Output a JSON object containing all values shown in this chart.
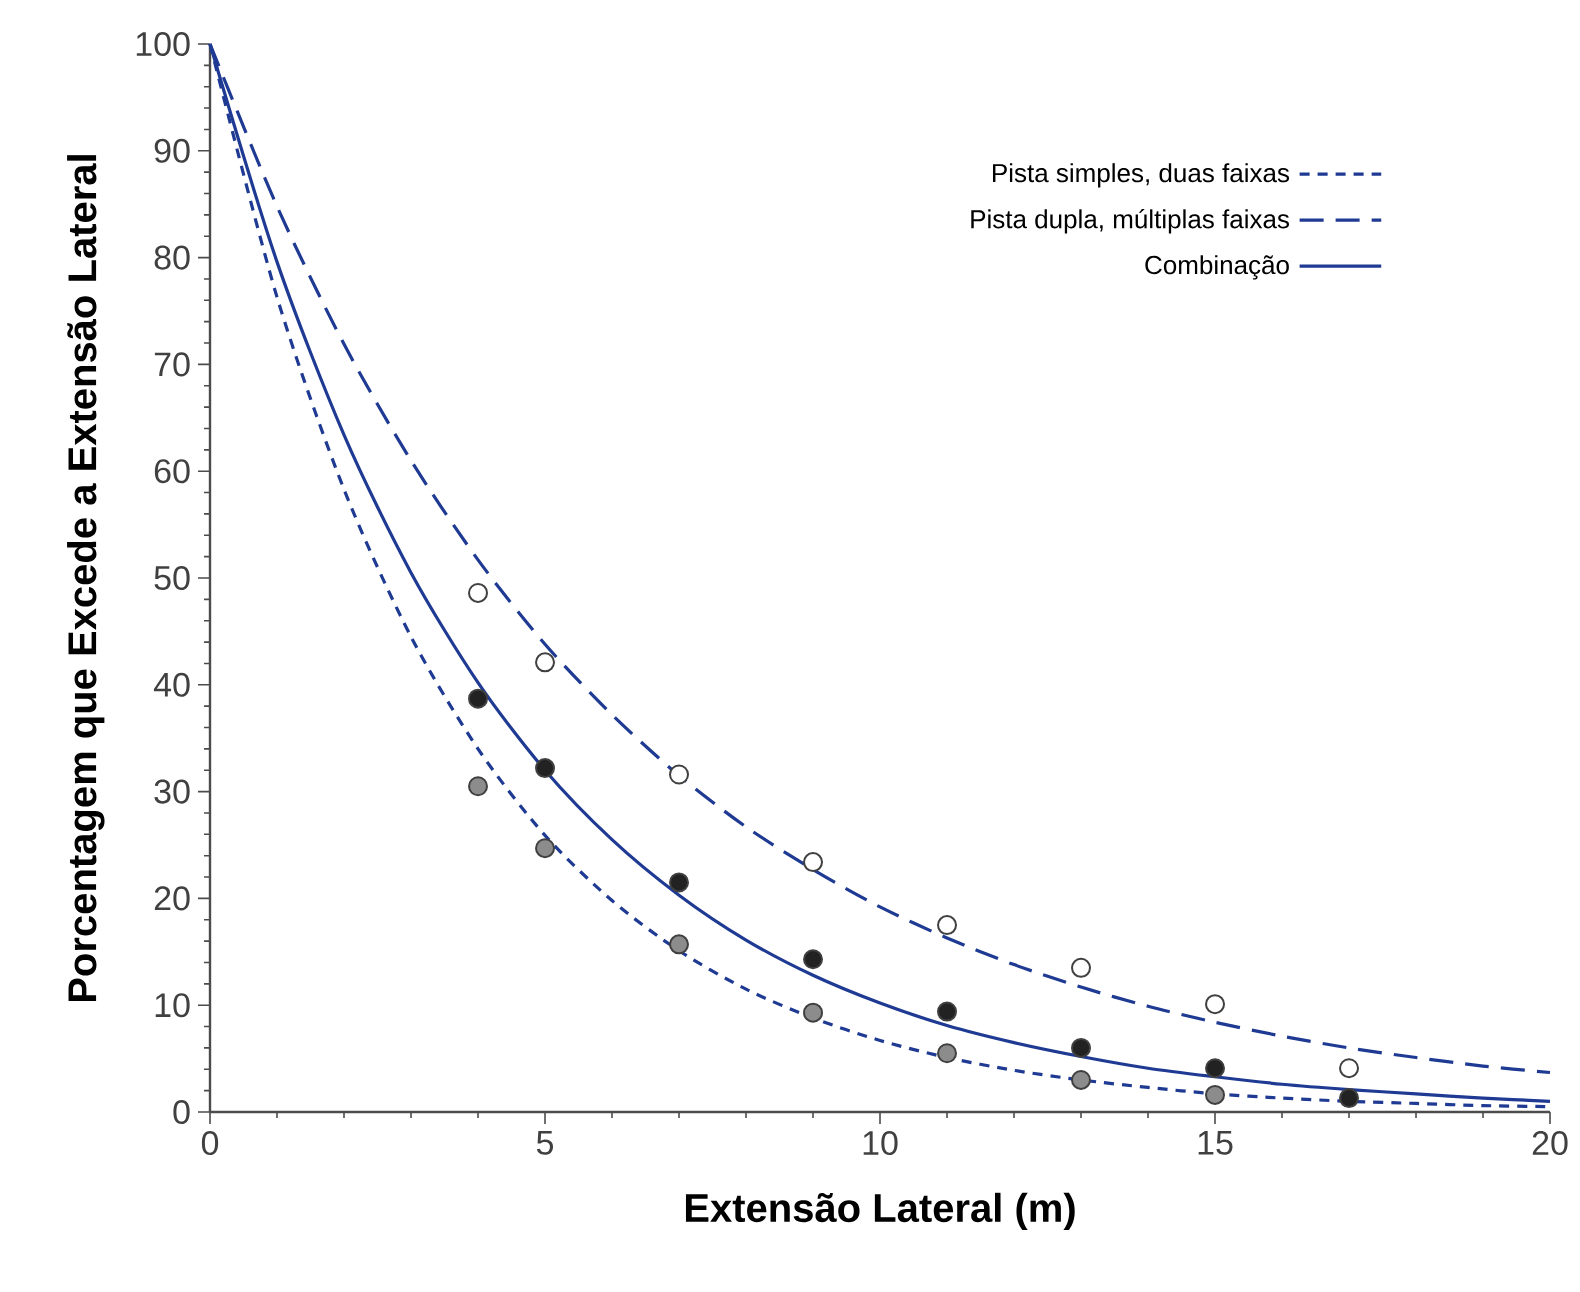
{
  "chart_data": {
    "type": "line",
    "xlabel": "Extensão Lateral (m)",
    "ylabel": "Porcentagem que Excede a Extensão Lateral",
    "xlim": [
      0,
      20
    ],
    "ylim": [
      0,
      100
    ],
    "xticks": [
      0,
      5,
      10,
      15,
      20
    ],
    "yticks": [
      0,
      10,
      20,
      30,
      40,
      50,
      60,
      70,
      80,
      90,
      100
    ],
    "grid": false,
    "legend": "top right",
    "marker": "none",
    "series": [
      {
        "name": "Pista simples, duas faixas",
        "color": "#1f3a93",
        "line_style": "dashed",
        "x": [
          0,
          1,
          2,
          3,
          4,
          5,
          6,
          7,
          8,
          9,
          10,
          11,
          12,
          13,
          14,
          15,
          16,
          17,
          18,
          19,
          20
        ],
        "values": [
          100,
          76.3,
          58.3,
          44.5,
          34.0,
          25.9,
          19.8,
          15.1,
          11.5,
          8.8,
          6.7,
          5.1,
          3.9,
          3.0,
          2.3,
          1.7,
          1.3,
          1.0,
          0.8,
          0.6,
          0.5
        ]
      },
      {
        "name": "Pista dupla, múltiplas faixas",
        "color": "#1f3a93",
        "line_style": "dashed",
        "x": [
          0,
          1,
          2,
          3,
          4,
          5,
          6,
          7,
          8,
          9,
          10,
          11,
          12,
          13,
          14,
          15,
          16,
          17,
          18,
          19,
          20
        ],
        "values": [
          100,
          84.8,
          71.9,
          61,
          51.7,
          43.8,
          37.2,
          31.5,
          26.7,
          22.7,
          19.2,
          16.3,
          13.8,
          11.7,
          9.9,
          8.4,
          7.1,
          6.0,
          5.1,
          4.3,
          3.7
        ]
      },
      {
        "name": "Combinação",
        "color": "#1f3a93",
        "line_style": "solid",
        "x": [
          0,
          1,
          2,
          3,
          4,
          5,
          6,
          7,
          8,
          9,
          10,
          11,
          12,
          13,
          14,
          15,
          16,
          17,
          18,
          19,
          20
        ],
        "values": [
          100,
          79.6,
          63.4,
          50.5,
          40.2,
          32,
          25.5,
          20.3,
          16.1,
          12.8,
          10.2,
          8.1,
          6.5,
          5.2,
          4.1,
          3.3,
          2.6,
          2.1,
          1.7,
          1.3,
          1.0
        ]
      },
      {
        "type": "scatter",
        "marker": "circle",
        "color": "#8c8c8c",
        "x": [
          4,
          5,
          7,
          9,
          11,
          13,
          15
        ],
        "values": [
          30.5,
          24.7,
          15.7,
          9.3,
          5.5,
          3.0,
          1.6
        ]
      },
      {
        "type": "scatter",
        "marker": "circle",
        "color": "#ffffff",
        "x": [
          4,
          5,
          7,
          9,
          11,
          13,
          15,
          17
        ],
        "values": [
          48.6,
          42.1,
          31.6,
          23.4,
          17.5,
          13.5,
          10.1,
          4.1
        ]
      },
      {
        "type": "scatter",
        "marker": "circle",
        "color": "#222222",
        "x": [
          4,
          5,
          7,
          9,
          11,
          13,
          15,
          17
        ],
        "values": [
          38.7,
          32.2,
          21.5,
          14.3,
          9.4,
          6.0,
          4.1,
          1.3
        ]
      }
    ]
  }
}
